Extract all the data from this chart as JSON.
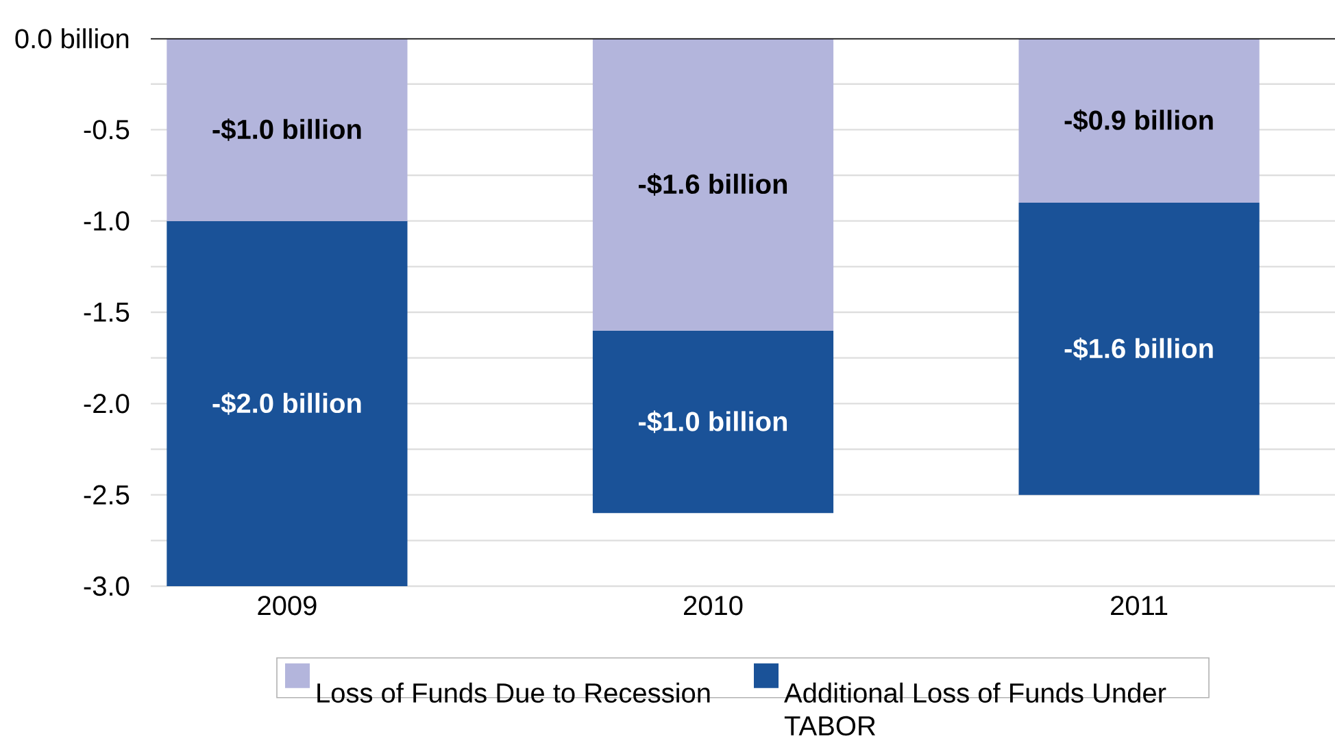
{
  "chart_data": {
    "type": "bar",
    "stacked": true,
    "categories": [
      "2009",
      "2010",
      "2011"
    ],
    "series": [
      {
        "name": "Loss of Funds Due to Recession",
        "color": "#b3b5dc",
        "values": [
          -1.0,
          -1.6,
          -0.9
        ],
        "value_labels": [
          "-$1.0 billion",
          "-$1.6 billion",
          "-$0.9 billion"
        ]
      },
      {
        "name": "Additional Loss of Funds Under TABOR",
        "color": "#1a5298",
        "values": [
          -2.0,
          -1.0,
          -1.6
        ],
        "value_labels": [
          "-$2.0 billion",
          "-$1.0 billion",
          "-$1.6 billion"
        ]
      }
    ],
    "ylim": [
      -3.0,
      0
    ],
    "yticks": [
      {
        "value": 0,
        "label": "0.0  billion"
      },
      {
        "value": -0.25,
        "label": null
      },
      {
        "value": -0.5,
        "label": "-0.5"
      },
      {
        "value": -0.75,
        "label": null
      },
      {
        "value": -1.0,
        "label": "-1.0"
      },
      {
        "value": -1.25,
        "label": null
      },
      {
        "value": -1.5,
        "label": "-1.5"
      },
      {
        "value": -1.75,
        "label": null
      },
      {
        "value": -2.0,
        "label": "-2.0"
      },
      {
        "value": -2.25,
        "label": null
      },
      {
        "value": -2.5,
        "label": "-2.5"
      },
      {
        "value": -2.75,
        "label": null
      },
      {
        "value": -3.0,
        "label": "-3.0"
      }
    ],
    "grid": "y",
    "legend": "bottom"
  }
}
